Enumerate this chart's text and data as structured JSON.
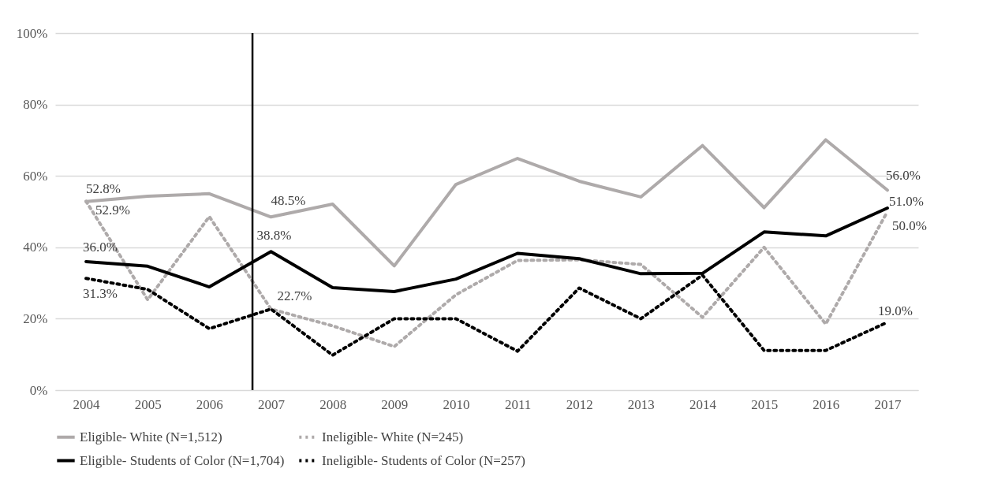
{
  "chart_data": {
    "type": "line",
    "x": [
      2004,
      2005,
      2006,
      2007,
      2008,
      2009,
      2010,
      2011,
      2012,
      2013,
      2014,
      2015,
      2016,
      2017
    ],
    "xlim": [
      2003.5,
      2017.5
    ],
    "xticks": [
      2004,
      2005,
      2006,
      2007,
      2008,
      2009,
      2010,
      2011,
      2012,
      2013,
      2014,
      2015,
      2016,
      2017
    ],
    "ylim": [
      0,
      100
    ],
    "yticks": [
      {
        "value": 0,
        "label": "0%"
      },
      {
        "value": 20,
        "label": "20%"
      },
      {
        "value": 40,
        "label": "40%"
      },
      {
        "value": 60,
        "label": "60%"
      },
      {
        "value": 80,
        "label": "80%"
      },
      {
        "value": 100,
        "label": "100%"
      }
    ],
    "grid": "y",
    "legend": "bottom",
    "marker": "none",
    "ref_lines": [
      {
        "axis": "x",
        "value": 2006.7,
        "color": "#000000"
      }
    ],
    "series": [
      {
        "name": "Eligible- White (N=1,512)",
        "color": "#aeaaaa",
        "line_style": "solid",
        "values": [
          52.8,
          54.3,
          55.0,
          48.5,
          52.1,
          34.8,
          57.6,
          64.9,
          58.5,
          54.1,
          68.5,
          51.1,
          70.1,
          56.0
        ],
        "value_labels": [
          "52.8%",
          null,
          null,
          "48.5%",
          null,
          null,
          null,
          null,
          null,
          null,
          null,
          null,
          null,
          "56.0%"
        ]
      },
      {
        "name": "Ineligible- White (N=245)",
        "color": "#aeaaaa",
        "line_style": "dotted",
        "values": [
          52.9,
          25.3,
          48.6,
          22.7,
          18,
          12.2,
          26.7,
          36.3,
          36.5,
          35.2,
          20.4,
          40.0,
          18.5,
          50.0
        ],
        "value_labels": [
          "52.9%",
          null,
          null,
          null,
          null,
          null,
          null,
          null,
          null,
          null,
          null,
          null,
          null,
          "50.0%"
        ]
      },
      {
        "name": "Eligible- Students of Color (N=1,704)",
        "color": "#000000",
        "line_style": "solid",
        "values": [
          36.0,
          34.7,
          28.9,
          38.8,
          28.7,
          27.6,
          31.1,
          38.3,
          36.8,
          32.6,
          32.7,
          44.3,
          43.2,
          51.0
        ],
        "value_labels": [
          "36.0%",
          null,
          null,
          "38.8%",
          null,
          null,
          null,
          null,
          null,
          null,
          null,
          null,
          null,
          "51.0%"
        ]
      },
      {
        "name": "Ineligible- Students of Color (N=257)",
        "color": "#000000",
        "line_style": "dotted",
        "values": [
          31.3,
          28.2,
          17.2,
          22.7,
          9.8,
          20.0,
          20.0,
          10.9,
          28.6,
          20.0,
          32.2,
          11.1,
          11.1,
          19.0
        ],
        "value_labels": [
          "31.3%",
          null,
          null,
          "22.7%",
          null,
          null,
          null,
          null,
          null,
          null,
          null,
          null,
          null,
          "19.0%"
        ]
      }
    ]
  }
}
